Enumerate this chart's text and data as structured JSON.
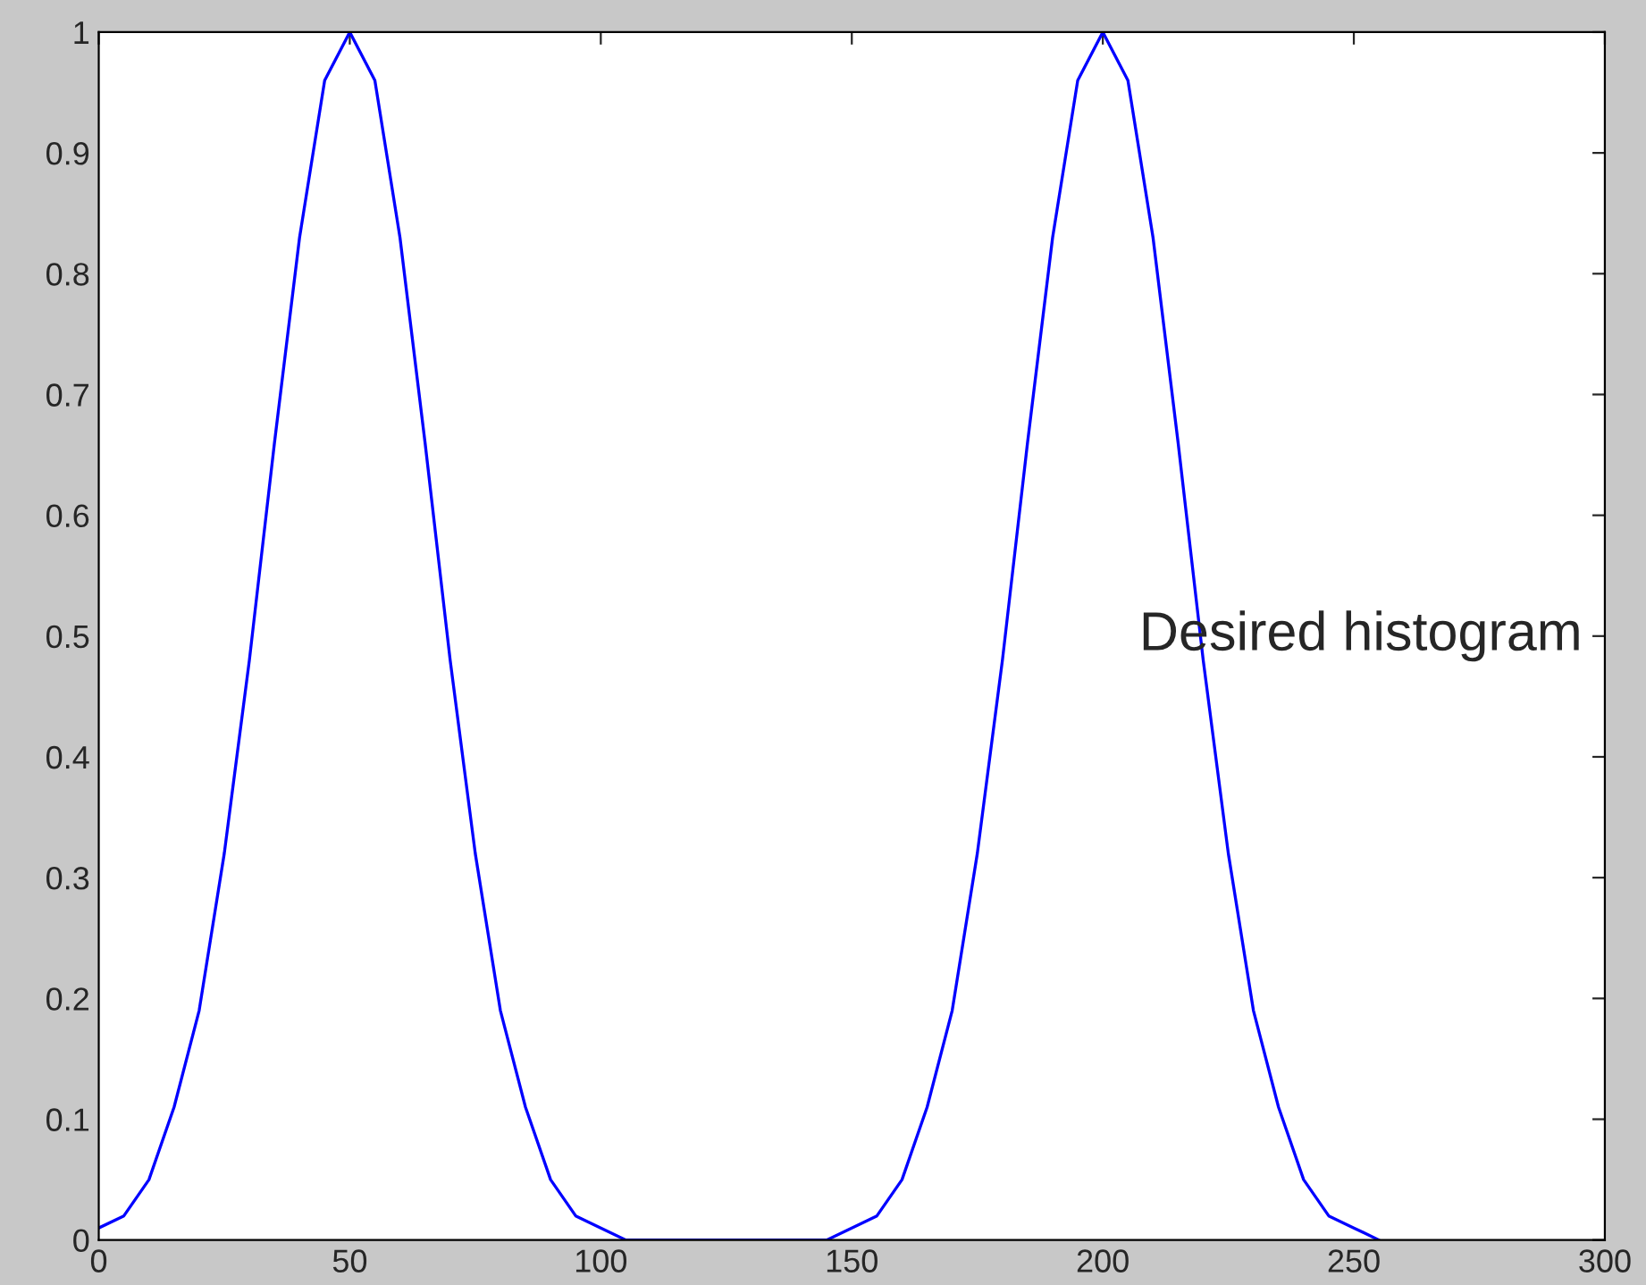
{
  "chart_data": {
    "type": "line",
    "x": [
      0,
      5,
      10,
      15,
      20,
      25,
      30,
      35,
      40,
      45,
      50,
      55,
      60,
      65,
      70,
      75,
      80,
      85,
      90,
      95,
      100,
      105,
      110,
      115,
      120,
      125,
      130,
      135,
      140,
      145,
      150,
      155,
      160,
      165,
      170,
      175,
      180,
      185,
      190,
      195,
      200,
      205,
      210,
      215,
      220,
      225,
      230,
      235,
      240,
      245,
      250,
      255
    ],
    "series": [
      {
        "color": "#0000ff",
        "values": [
          0.01,
          0.02,
          0.05,
          0.11,
          0.19,
          0.32,
          0.48,
          0.66,
          0.83,
          0.96,
          1,
          0.96,
          0.83,
          0.66,
          0.48,
          0.32,
          0.19,
          0.11,
          0.05,
          0.02,
          0.01,
          0,
          0,
          0,
          0,
          0,
          0,
          0,
          0,
          0,
          0.01,
          0.02,
          0.05,
          0.11,
          0.19,
          0.32,
          0.48,
          0.66,
          0.83,
          0.96,
          1,
          0.96,
          0.83,
          0.66,
          0.48,
          0.32,
          0.19,
          0.11,
          0.05,
          0.02,
          0.01,
          0
        ]
      }
    ],
    "annotations": [
      "Desired histogram"
    ],
    "xlim": [
      0,
      300
    ],
    "ylim": [
      0,
      1
    ],
    "xticks": [
      0,
      50,
      100,
      150,
      200,
      250,
      300
    ],
    "yticks": [
      0,
      0.1,
      0.2,
      0.3,
      0.4,
      0.5,
      0.6,
      0.7,
      0.8,
      0.9,
      1
    ],
    "grid": false,
    "marker": "none",
    "line_style": "solid"
  }
}
